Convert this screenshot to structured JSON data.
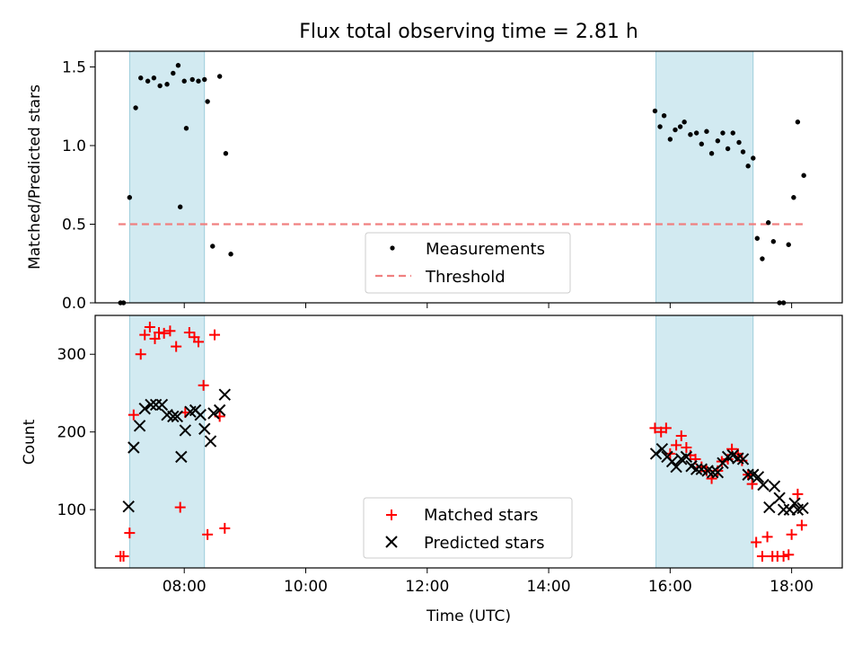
{
  "chart_data": [
    {
      "type": "scatter",
      "title": "Flux total observing time = 2.81 h",
      "xlabel": "",
      "ylabel": "Matched/Predicted stars",
      "xlim": [
        "06:32",
        "18:50"
      ],
      "ylim": [
        0,
        1.6
      ],
      "yticks": [
        0.0,
        0.5,
        1.0,
        1.5
      ],
      "ytick_labels": [
        "0.0",
        "0.5",
        "1.0",
        "1.5"
      ],
      "shaded_intervals": [
        [
          "07:06",
          "08:20"
        ],
        [
          "15:46",
          "17:22"
        ]
      ],
      "shade_color": "#add8e6",
      "threshold": {
        "name": "Threshold",
        "value": 0.5,
        "x_range": [
          "06:55",
          "18:12"
        ],
        "color": "#f08080",
        "style": "dashed"
      },
      "series": [
        {
          "name": "Measurements",
          "color": "#000000",
          "marker": "dot",
          "points": [
            [
              "06:57",
              0.0
            ],
            [
              "07:00",
              0.0
            ],
            [
              "07:06",
              0.67
            ],
            [
              "07:12",
              1.24
            ],
            [
              "07:17",
              1.43
            ],
            [
              "07:24",
              1.41
            ],
            [
              "07:30",
              1.43
            ],
            [
              "07:36",
              1.38
            ],
            [
              "07:43",
              1.39
            ],
            [
              "07:49",
              1.46
            ],
            [
              "07:54",
              1.51
            ],
            [
              "07:60",
              1.41
            ],
            [
              "07:56",
              0.61
            ],
            [
              "08:02",
              1.11
            ],
            [
              "08:08",
              1.42
            ],
            [
              "08:14",
              1.41
            ],
            [
              "08:20",
              1.42
            ],
            [
              "08:23",
              1.28
            ],
            [
              "08:28",
              0.36
            ],
            [
              "08:35",
              1.44
            ],
            [
              "08:41",
              0.95
            ],
            [
              "08:46",
              0.31
            ],
            [
              "15:45",
              1.22
            ],
            [
              "15:50",
              1.12
            ],
            [
              "15:54",
              1.19
            ],
            [
              "16:00",
              1.04
            ],
            [
              "16:05",
              1.1
            ],
            [
              "16:10",
              1.12
            ],
            [
              "16:14",
              1.15
            ],
            [
              "16:20",
              1.07
            ],
            [
              "16:26",
              1.08
            ],
            [
              "16:31",
              1.01
            ],
            [
              "16:36",
              1.09
            ],
            [
              "16:41",
              0.95
            ],
            [
              "16:47",
              1.03
            ],
            [
              "16:52",
              1.08
            ],
            [
              "16:57",
              0.98
            ],
            [
              "17:02",
              1.08
            ],
            [
              "17:08",
              1.02
            ],
            [
              "17:12",
              0.96
            ],
            [
              "17:17",
              0.87
            ],
            [
              "17:22",
              0.92
            ],
            [
              "17:26",
              0.41
            ],
            [
              "17:31",
              0.28
            ],
            [
              "17:37",
              0.51
            ],
            [
              "17:42",
              0.39
            ],
            [
              "17:48",
              0.0
            ],
            [
              "17:52",
              0.0
            ],
            [
              "17:57",
              0.37
            ],
            [
              "18:02",
              0.67
            ],
            [
              "18:06",
              1.15
            ],
            [
              "18:12",
              0.81
            ]
          ]
        }
      ],
      "legend": {
        "placement": "lower center",
        "entries": [
          "Measurements",
          "Threshold"
        ]
      }
    },
    {
      "type": "scatter",
      "title": "",
      "xlabel": "Time (UTC)",
      "ylabel": "Count",
      "xlim": [
        "06:32",
        "18:50"
      ],
      "ylim": [
        25,
        350
      ],
      "xticks": [
        "08:00",
        "10:00",
        "12:00",
        "14:00",
        "16:00",
        "18:00"
      ],
      "yticks": [
        100,
        200,
        300
      ],
      "ytick_labels": [
        "100",
        "200",
        "300"
      ],
      "shaded_intervals": [
        [
          "07:06",
          "08:20"
        ],
        [
          "15:46",
          "17:22"
        ]
      ],
      "shade_color": "#add8e6",
      "series": [
        {
          "name": "Matched stars",
          "color": "#ff0000",
          "marker": "plus",
          "points": [
            [
              "06:57",
              40
            ],
            [
              "07:00",
              40
            ],
            [
              "07:06",
              70
            ],
            [
              "07:10",
              222
            ],
            [
              "07:17",
              300
            ],
            [
              "07:21",
              325
            ],
            [
              "07:26",
              335
            ],
            [
              "07:31",
              320
            ],
            [
              "07:35",
              328
            ],
            [
              "07:40",
              327
            ],
            [
              "07:46",
              330
            ],
            [
              "07:52",
              310
            ],
            [
              "07:56",
              103
            ],
            [
              "08:01",
              225
            ],
            [
              "08:05",
              328
            ],
            [
              "08:10",
              322
            ],
            [
              "08:14",
              316
            ],
            [
              "08:19",
              260
            ],
            [
              "08:23",
              68
            ],
            [
              "08:30",
              325
            ],
            [
              "08:35",
              220
            ],
            [
              "08:40",
              76
            ],
            [
              "15:45",
              205
            ],
            [
              "15:51",
              200
            ],
            [
              "15:56",
              205
            ],
            [
              "16:00",
              172
            ],
            [
              "16:06",
              183
            ],
            [
              "16:11",
              195
            ],
            [
              "16:16",
              180
            ],
            [
              "16:20",
              170
            ],
            [
              "16:25",
              165
            ],
            [
              "16:31",
              155
            ],
            [
              "16:36",
              150
            ],
            [
              "16:41",
              140
            ],
            [
              "16:47",
              150
            ],
            [
              "16:51",
              162
            ],
            [
              "16:57",
              165
            ],
            [
              "17:01",
              178
            ],
            [
              "17:07",
              172
            ],
            [
              "17:11",
              163
            ],
            [
              "17:17",
              145
            ],
            [
              "17:21",
              133
            ],
            [
              "17:25",
              58
            ],
            [
              "17:31",
              40
            ],
            [
              "17:36",
              65
            ],
            [
              "17:41",
              40
            ],
            [
              "17:46",
              40
            ],
            [
              "17:52",
              40
            ],
            [
              "17:57",
              42
            ],
            [
              "18:00",
              68
            ],
            [
              "18:06",
              120
            ],
            [
              "18:10",
              80
            ]
          ]
        },
        {
          "name": "Predicted stars",
          "color": "#000000",
          "marker": "x",
          "points": [
            [
              "07:05",
              104
            ],
            [
              "07:10",
              180
            ],
            [
              "07:16",
              208
            ],
            [
              "07:21",
              230
            ],
            [
              "07:27",
              235
            ],
            [
              "07:32",
              235
            ],
            [
              "07:38",
              235
            ],
            [
              "07:43",
              222
            ],
            [
              "07:49",
              220
            ],
            [
              "07:53",
              220
            ],
            [
              "07:57",
              168
            ],
            [
              "08:01",
              202
            ],
            [
              "08:06",
              226
            ],
            [
              "08:11",
              228
            ],
            [
              "08:16",
              222
            ],
            [
              "08:20",
              204
            ],
            [
              "08:26",
              188
            ],
            [
              "08:29",
              224
            ],
            [
              "08:35",
              228
            ],
            [
              "08:40",
              248
            ],
            [
              "15:46",
              172
            ],
            [
              "15:52",
              178
            ],
            [
              "15:57",
              168
            ],
            [
              "16:02",
              162
            ],
            [
              "16:06",
              155
            ],
            [
              "16:11",
              165
            ],
            [
              "16:16",
              168
            ],
            [
              "16:21",
              156
            ],
            [
              "16:26",
              152
            ],
            [
              "16:31",
              152
            ],
            [
              "16:37",
              150
            ],
            [
              "16:42",
              148
            ],
            [
              "16:47",
              148
            ],
            [
              "16:52",
              160
            ],
            [
              "16:57",
              168
            ],
            [
              "17:02",
              170
            ],
            [
              "17:07",
              166
            ],
            [
              "17:12",
              165
            ],
            [
              "17:17",
              145
            ],
            [
              "17:22",
              145
            ],
            [
              "17:27",
              142
            ],
            [
              "17:32",
              132
            ],
            [
              "17:38",
              103
            ],
            [
              "17:43",
              130
            ],
            [
              "17:48",
              115
            ],
            [
              "17:52",
              100
            ],
            [
              "17:58",
              100
            ],
            [
              "18:03",
              108
            ],
            [
              "18:06",
              100
            ],
            [
              "18:11",
              102
            ]
          ]
        }
      ],
      "legend": {
        "placement": "lower center",
        "entries": [
          "Matched stars",
          "Predicted stars"
        ]
      }
    }
  ]
}
